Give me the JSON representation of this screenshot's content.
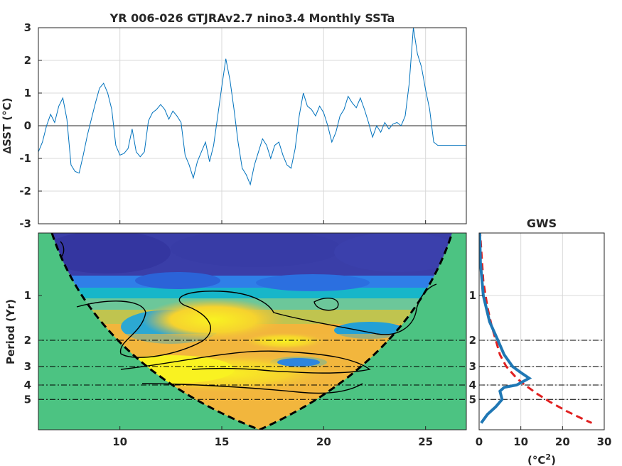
{
  "title": "YR 006-026 GTJRAv2.7 nino3.4 Monthly SSTa",
  "gws_title": "GWS",
  "chart_data": [
    {
      "type": "line",
      "title": "YR 006-026 GTJRAv2.7 nino3.4 Monthly SSTa",
      "ylabel": "∆SST (°C)",
      "xlabel": "",
      "xlim": [
        6,
        27
      ],
      "ylim": [
        -3,
        3
      ],
      "xticks": [
        10,
        15,
        20,
        25
      ],
      "yticks": [
        -3,
        -2,
        -1,
        0,
        1,
        2,
        3
      ],
      "grid": true,
      "series": [
        {
          "color": "#0072bd",
          "x": [
            6.0,
            6.2,
            6.4,
            6.6,
            6.8,
            7.0,
            7.2,
            7.4,
            7.6,
            7.8,
            8.0,
            8.2,
            8.4,
            8.6,
            8.8,
            9.0,
            9.2,
            9.4,
            9.6,
            9.8,
            10.0,
            10.2,
            10.4,
            10.6,
            10.8,
            11.0,
            11.2,
            11.4,
            11.6,
            11.8,
            12.0,
            12.2,
            12.4,
            12.6,
            12.8,
            13.0,
            13.2,
            13.4,
            13.6,
            13.8,
            14.0,
            14.2,
            14.4,
            14.6,
            14.8,
            15.0,
            15.2,
            15.4,
            15.6,
            15.8,
            16.0,
            16.2,
            16.4,
            16.6,
            16.8,
            17.0,
            17.2,
            17.4,
            17.6,
            17.8,
            18.0,
            18.2,
            18.4,
            18.6,
            18.8,
            19.0,
            19.2,
            19.4,
            19.6,
            19.8,
            20.0,
            20.2,
            20.4,
            20.6,
            20.8,
            21.0,
            21.2,
            21.4,
            21.6,
            21.8,
            22.0,
            22.2,
            22.4,
            22.6,
            22.8,
            23.0,
            23.2,
            23.4,
            23.6,
            23.8,
            24.0,
            24.2,
            24.4,
            24.6,
            24.8,
            25.0,
            25.2,
            25.4,
            25.6,
            25.8,
            26.0,
            26.2,
            26.4,
            26.6,
            26.8,
            27.0
          ],
          "y": [
            -0.8,
            -0.5,
            0.0,
            0.35,
            0.1,
            0.6,
            0.85,
            0.2,
            -1.2,
            -1.4,
            -1.45,
            -0.9,
            -0.3,
            0.2,
            0.7,
            1.15,
            1.3,
            1.0,
            0.5,
            -0.6,
            -0.9,
            -0.85,
            -0.7,
            -0.1,
            -0.8,
            -0.95,
            -0.8,
            0.15,
            0.4,
            0.5,
            0.65,
            0.5,
            0.2,
            0.45,
            0.3,
            0.1,
            -0.9,
            -1.2,
            -1.6,
            -1.1,
            -0.8,
            -0.5,
            -1.1,
            -0.6,
            0.3,
            1.2,
            2.05,
            1.4,
            0.5,
            -0.5,
            -1.3,
            -1.5,
            -1.8,
            -1.2,
            -0.8,
            -0.4,
            -0.6,
            -1.0,
            -0.6,
            -0.5,
            -0.9,
            -1.2,
            -1.3,
            -0.7,
            0.3,
            1.0,
            0.6,
            0.5,
            0.3,
            0.6,
            0.4,
            0.0,
            -0.5,
            -0.2,
            0.3,
            0.5,
            0.9,
            0.7,
            0.55,
            0.85,
            0.5,
            0.1,
            -0.35,
            0.0,
            -0.2,
            0.1,
            -0.1,
            0.05,
            0.1,
            0.0,
            0.3,
            1.3,
            3.0,
            2.2,
            1.8,
            1.1,
            0.5,
            -0.5,
            -0.6,
            -0.6,
            -0.6,
            -0.6,
            -0.6,
            -0.6,
            -0.6,
            -0.6
          ]
        }
      ],
      "zero_line": 0
    },
    {
      "type": "heatmap",
      "title": "",
      "xlabel": "",
      "ylabel": "Period (Yr)",
      "xlim": [
        6,
        27
      ],
      "xticks": [
        10,
        15,
        20,
        25
      ],
      "yticks": [
        1,
        2,
        3,
        4,
        5
      ],
      "colormap": "parula",
      "cone_color": "#4cc382",
      "reference_lines": [
        2,
        3,
        4,
        5
      ]
    },
    {
      "type": "line",
      "title": "GWS",
      "xlabel": "(°C²)",
      "xlim": [
        0,
        30
      ],
      "xticks": [
        0,
        10,
        20,
        30
      ],
      "yticks": [
        1,
        2,
        3,
        4,
        5
      ],
      "series": [
        {
          "color": "#0072bd",
          "line": "solid",
          "points": [
            [
              0.0,
              0.25
            ],
            [
              0.3,
              0.6
            ],
            [
              1.0,
              1.0
            ],
            [
              2.5,
              1.5
            ],
            [
              4.5,
              2.0
            ],
            [
              6.0,
              2.5
            ],
            [
              8.0,
              3.0
            ],
            [
              10.0,
              3.3
            ],
            [
              12.0,
              3.6
            ],
            [
              9.0,
              4.0
            ],
            [
              6.0,
              4.15
            ],
            [
              5.0,
              4.4
            ],
            [
              5.5,
              5.0
            ],
            [
              4.0,
              5.6
            ],
            [
              2.0,
              6.3
            ],
            [
              0.5,
              7.2
            ]
          ]
        },
        {
          "color": "#d62728",
          "line": "dashed",
          "points": [
            [
              0.0,
              0.3
            ],
            [
              1.0,
              0.8
            ],
            [
              2.0,
              1.2
            ],
            [
              3.0,
              1.6
            ],
            [
              4.0,
              2.0
            ],
            [
              5.0,
              2.5
            ],
            [
              6.5,
              3.0
            ],
            [
              9.0,
              3.6
            ],
            [
              11.0,
              4.0
            ],
            [
              14.0,
              4.6
            ],
            [
              17.0,
              5.2
            ],
            [
              21.0,
              6.0
            ],
            [
              25.0,
              6.8
            ],
            [
              27.0,
              7.2
            ]
          ]
        }
      ]
    }
  ]
}
